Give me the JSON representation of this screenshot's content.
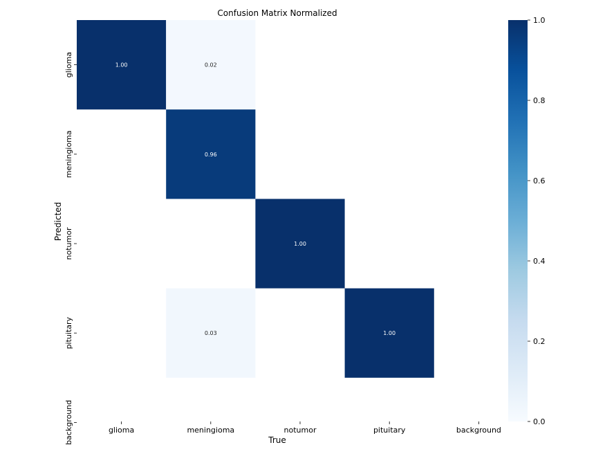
{
  "chart_data": {
    "type": "heatmap",
    "title": "Confusion Matrix Normalized",
    "xlabel": "True",
    "ylabel": "Predicted",
    "x_categories": [
      "glioma",
      "meningioma",
      "notumor",
      "pituitary",
      "background"
    ],
    "y_categories": [
      "glioma",
      "meningioma",
      "notumor",
      "pituitary",
      "background"
    ],
    "values": [
      [
        1.0,
        0.02,
        null,
        null,
        null
      ],
      [
        null,
        0.96,
        null,
        null,
        null
      ],
      [
        null,
        null,
        1.0,
        null,
        null
      ],
      [
        null,
        0.03,
        null,
        1.0,
        null
      ],
      [
        null,
        null,
        null,
        null,
        null
      ]
    ],
    "value_format": "0.00",
    "colorbar": {
      "range": [
        0.0,
        1.0
      ],
      "ticks": [
        "0.0",
        "0.2",
        "0.4",
        "0.6",
        "0.8",
        "1.0"
      ],
      "colormap": "Blues",
      "placement": "right"
    },
    "grid": false
  }
}
